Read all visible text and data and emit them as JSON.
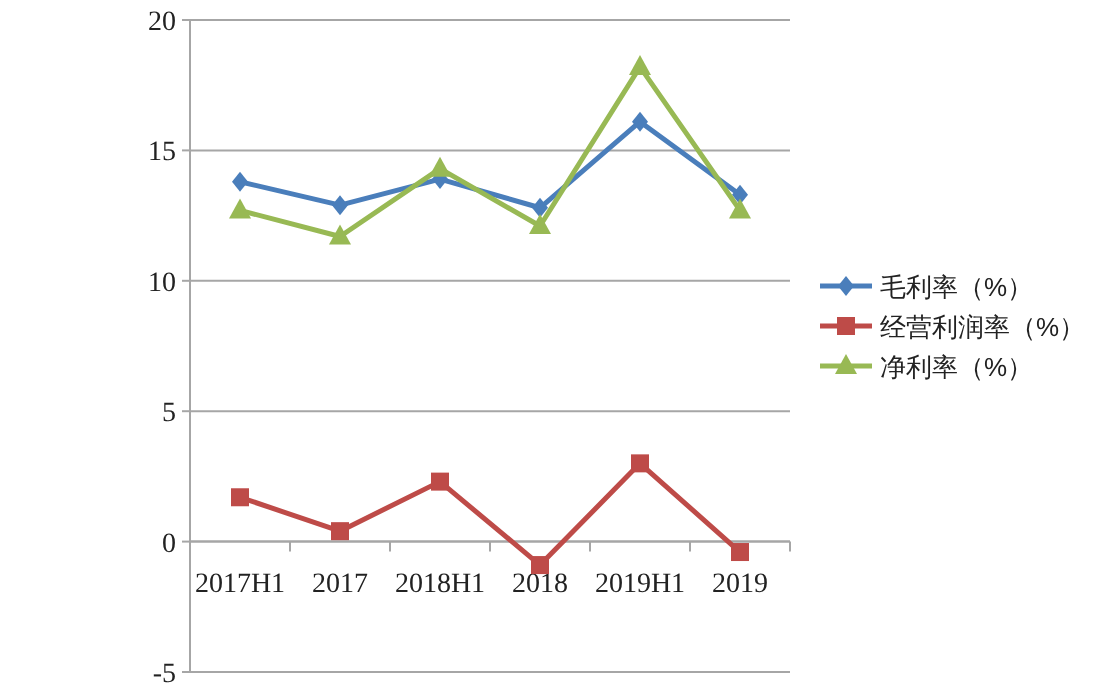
{
  "chart_data": {
    "type": "line",
    "categories": [
      "2017H1",
      "2017",
      "2018H1",
      "2018",
      "2019H1",
      "2019"
    ],
    "series": [
      {
        "name": "毛利率（%）",
        "color": "#4a7ebb",
        "marker": "diamond",
        "values": [
          13.8,
          12.9,
          13.9,
          12.8,
          16.1,
          13.3
        ]
      },
      {
        "name": "经营利润率（%）",
        "color": "#be4b48",
        "marker": "square",
        "values": [
          1.7,
          0.4,
          2.3,
          -0.9,
          3.0,
          -0.4
        ]
      },
      {
        "name": "净利率（%）",
        "color": "#98b954",
        "marker": "triangle",
        "values": [
          12.7,
          11.7,
          14.3,
          12.1,
          18.2,
          12.7
        ]
      }
    ],
    "ylim": [
      -5,
      20
    ],
    "yticks": [
      -5,
      0,
      5,
      10,
      15,
      20
    ],
    "grid": "y",
    "legend": "right"
  }
}
